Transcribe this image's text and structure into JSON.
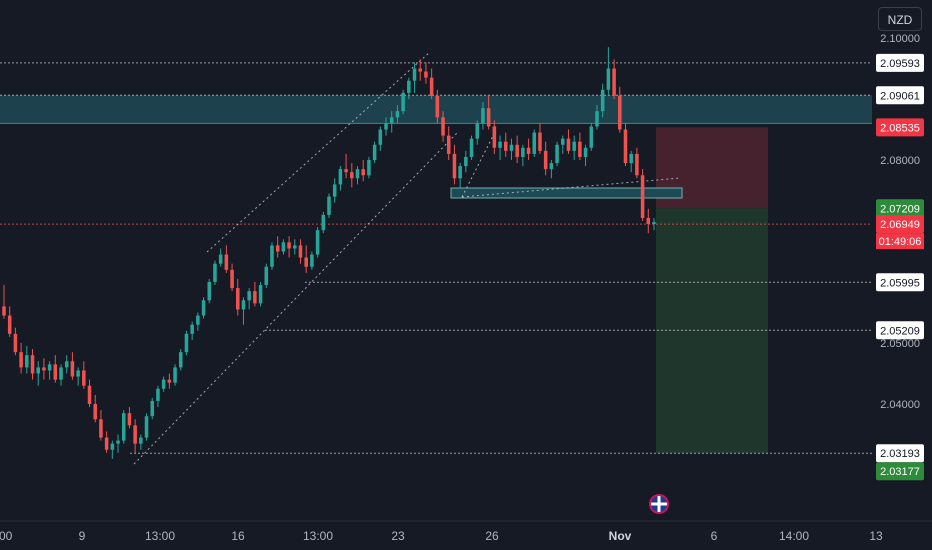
{
  "currency": "NZD",
  "colors": {
    "background": "#161a25",
    "up": "#26a69a",
    "down": "#ef5350",
    "zone": "#1e4a55",
    "grid_line": "#d1d4dc",
    "stop_zone": "#4a2430",
    "target_zone": "#1f3a2c"
  },
  "chart_data": {
    "type": "candlestick",
    "x_ticks": [
      ":00",
      "9",
      "13:00",
      "16",
      "13:00",
      "23",
      "26",
      "Nov",
      "6",
      "14:00",
      "13"
    ],
    "y_ticks": [
      "2.10000",
      "2.08000",
      "2.05000",
      "2.04000"
    ],
    "price_levels": [
      {
        "value": "2.09593",
        "style": "white"
      },
      {
        "value": "2.09061",
        "style": "white"
      },
      {
        "value": "2.08535",
        "style": "red"
      },
      {
        "value": "2.07209",
        "style": "green"
      },
      {
        "value": "2.06949",
        "style": "red"
      },
      {
        "value": "2.05995",
        "style": "white"
      },
      {
        "value": "2.05209",
        "style": "white"
      },
      {
        "value": "2.03193",
        "style": "white"
      },
      {
        "value": "2.03177",
        "style": "green"
      }
    ],
    "countdown": "01:49:06",
    "candles": [
      [
        2.056,
        2.0595,
        2.054,
        2.0545
      ],
      [
        2.0545,
        2.056,
        2.051,
        2.0515
      ],
      [
        2.0515,
        2.0525,
        2.048,
        2.0485
      ],
      [
        2.0485,
        2.05,
        2.045,
        2.046
      ],
      [
        2.046,
        2.0495,
        2.045,
        2.048
      ],
      [
        2.048,
        2.049,
        2.044,
        2.045
      ],
      [
        2.045,
        2.047,
        2.043,
        2.046
      ],
      [
        2.046,
        2.0475,
        2.044,
        2.0455
      ],
      [
        2.0455,
        2.047,
        2.044,
        2.0465
      ],
      [
        2.0465,
        2.048,
        2.0435,
        2.044
      ],
      [
        2.044,
        2.0465,
        2.043,
        2.046
      ],
      [
        2.046,
        2.048,
        2.045,
        2.047
      ],
      [
        2.047,
        2.0485,
        2.044,
        2.0445
      ],
      [
        2.0445,
        2.046,
        2.043,
        2.0455
      ],
      [
        2.0455,
        2.047,
        2.0425,
        2.043
      ],
      [
        2.043,
        2.044,
        2.0395,
        2.04
      ],
      [
        2.04,
        2.0415,
        2.037,
        2.0375
      ],
      [
        2.0375,
        2.039,
        2.034,
        2.0345
      ],
      [
        2.0345,
        2.0355,
        2.032,
        2.0325
      ],
      [
        2.0325,
        2.034,
        2.031,
        2.0335
      ],
      [
        2.0335,
        2.035,
        2.032,
        2.034
      ],
      [
        2.034,
        2.039,
        2.0335,
        2.0385
      ],
      [
        2.0385,
        2.0395,
        2.036,
        2.0365
      ],
      [
        2.0365,
        2.0375,
        2.032,
        2.0335
      ],
      [
        2.0335,
        2.035,
        2.0325,
        2.0345
      ],
      [
        2.0345,
        2.0385,
        2.034,
        2.038
      ],
      [
        2.038,
        2.041,
        2.0375,
        2.0405
      ],
      [
        2.0405,
        2.043,
        2.0395,
        2.0425
      ],
      [
        2.0425,
        2.0445,
        2.042,
        2.044
      ],
      [
        2.044,
        2.045,
        2.0425,
        2.0435
      ],
      [
        2.0435,
        2.0465,
        2.043,
        2.046
      ],
      [
        2.046,
        2.049,
        2.0455,
        2.0485
      ],
      [
        2.0485,
        2.052,
        2.048,
        2.0515
      ],
      [
        2.0515,
        2.0535,
        2.0505,
        2.053
      ],
      [
        2.053,
        2.055,
        2.052,
        2.0545
      ],
      [
        2.0545,
        2.0575,
        2.054,
        2.057
      ],
      [
        2.057,
        2.0605,
        2.0565,
        2.06
      ],
      [
        2.06,
        2.0635,
        2.0595,
        2.063
      ],
      [
        2.063,
        2.0655,
        2.0625,
        2.0645
      ],
      [
        2.0645,
        2.066,
        2.0615,
        2.062
      ],
      [
        2.062,
        2.063,
        2.0585,
        2.059
      ],
      [
        2.059,
        2.0605,
        2.0545,
        2.0555
      ],
      [
        2.0555,
        2.0575,
        2.053,
        2.057
      ],
      [
        2.057,
        2.059,
        2.0555,
        2.0585
      ],
      [
        2.0585,
        2.06,
        2.056,
        2.0565
      ],
      [
        2.0565,
        2.06,
        2.056,
        2.0595
      ],
      [
        2.0595,
        2.063,
        2.059,
        2.0625
      ],
      [
        2.0625,
        2.0665,
        2.062,
        2.066
      ],
      [
        2.066,
        2.0675,
        2.064,
        2.065
      ],
      [
        2.065,
        2.067,
        2.0645,
        2.0665
      ],
      [
        2.0665,
        2.0675,
        2.064,
        2.0655
      ],
      [
        2.0655,
        2.067,
        2.0645,
        2.066
      ],
      [
        2.066,
        2.067,
        2.063,
        2.064
      ],
      [
        2.064,
        2.066,
        2.0615,
        2.0625
      ],
      [
        2.0625,
        2.065,
        2.062,
        2.0645
      ],
      [
        2.0645,
        2.069,
        2.064,
        2.0685
      ],
      [
        2.0685,
        2.0715,
        2.068,
        2.071
      ],
      [
        2.071,
        2.0745,
        2.0705,
        2.074
      ],
      [
        2.074,
        2.077,
        2.073,
        2.076
      ],
      [
        2.076,
        2.079,
        2.075,
        2.0785
      ],
      [
        2.0785,
        2.081,
        2.077,
        2.078
      ],
      [
        2.078,
        2.0795,
        2.0755,
        2.077
      ],
      [
        2.077,
        2.079,
        2.076,
        2.0785
      ],
      [
        2.0785,
        2.08,
        2.0765,
        2.0775
      ],
      [
        2.0775,
        2.0805,
        2.077,
        2.08
      ],
      [
        2.08,
        2.083,
        2.0795,
        2.0825
      ],
      [
        2.0825,
        2.0855,
        2.0815,
        2.085
      ],
      [
        2.085,
        2.087,
        2.084,
        2.086
      ],
      [
        2.086,
        2.088,
        2.0845,
        2.087
      ],
      [
        2.087,
        2.089,
        2.086,
        2.088
      ],
      [
        2.088,
        2.0915,
        2.0875,
        2.091
      ],
      [
        2.091,
        2.0935,
        2.09,
        2.093
      ],
      [
        2.093,
        2.096,
        2.091,
        2.095
      ],
      [
        2.095,
        2.0965,
        2.093,
        2.0945
      ],
      [
        2.0945,
        2.096,
        2.0925,
        2.0935
      ],
      [
        2.0935,
        2.095,
        2.09,
        2.0905
      ],
      [
        2.0905,
        2.0915,
        2.086,
        2.087
      ],
      [
        2.087,
        2.088,
        2.083,
        2.084
      ],
      [
        2.084,
        2.0855,
        2.08,
        2.081
      ],
      [
        2.081,
        2.0825,
        2.076,
        2.077
      ],
      [
        2.077,
        2.0795,
        2.0755,
        2.079
      ],
      [
        2.079,
        2.0815,
        2.078,
        2.0805
      ],
      [
        2.0805,
        2.084,
        2.08,
        2.0835
      ],
      [
        2.0835,
        2.0865,
        2.0825,
        2.086
      ],
      [
        2.086,
        2.0895,
        2.085,
        2.0885
      ],
      [
        2.0885,
        2.0905,
        2.085,
        2.0855
      ],
      [
        2.0855,
        2.0865,
        2.081,
        2.082
      ],
      [
        2.082,
        2.084,
        2.08,
        2.083
      ],
      [
        2.083,
        2.0845,
        2.0805,
        2.0815
      ],
      [
        2.0815,
        2.0835,
        2.08,
        2.0825
      ],
      [
        2.0825,
        2.084,
        2.0795,
        2.0805
      ],
      [
        2.0805,
        2.0825,
        2.079,
        2.082
      ],
      [
        2.082,
        2.0835,
        2.08,
        2.081
      ],
      [
        2.081,
        2.085,
        2.0805,
        2.0845
      ],
      [
        2.0845,
        2.086,
        2.081,
        2.0815
      ],
      [
        2.0815,
        2.083,
        2.0775,
        2.0785
      ],
      [
        2.0785,
        2.08,
        2.077,
        2.0795
      ],
      [
        2.0795,
        2.083,
        2.079,
        2.0825
      ],
      [
        2.0825,
        2.084,
        2.081,
        2.0835
      ],
      [
        2.0835,
        2.085,
        2.081,
        2.0815
      ],
      [
        2.0815,
        2.084,
        2.08,
        2.083
      ],
      [
        2.083,
        2.0845,
        2.08,
        2.0805
      ],
      [
        2.0805,
        2.0825,
        2.079,
        2.082
      ],
      [
        2.082,
        2.086,
        2.0815,
        2.0855
      ],
      [
        2.0855,
        2.089,
        2.085,
        2.088
      ],
      [
        2.088,
        2.0925,
        2.087,
        2.0915
      ],
      [
        2.0915,
        2.0985,
        2.0905,
        2.095
      ],
      [
        2.095,
        2.0965,
        2.09,
        2.0905
      ],
      [
        2.0905,
        2.092,
        2.0845,
        2.085
      ],
      [
        2.085,
        2.086,
        2.079,
        2.0795
      ],
      [
        2.0795,
        2.0815,
        2.078,
        2.081
      ],
      [
        2.081,
        2.082,
        2.077,
        2.0775
      ],
      [
        2.0775,
        2.0785,
        2.07,
        2.0705
      ],
      [
        2.0705,
        2.072,
        2.068,
        2.0695
      ],
      [
        2.0695,
        2.0705,
        2.0685,
        2.0698
      ]
    ]
  }
}
